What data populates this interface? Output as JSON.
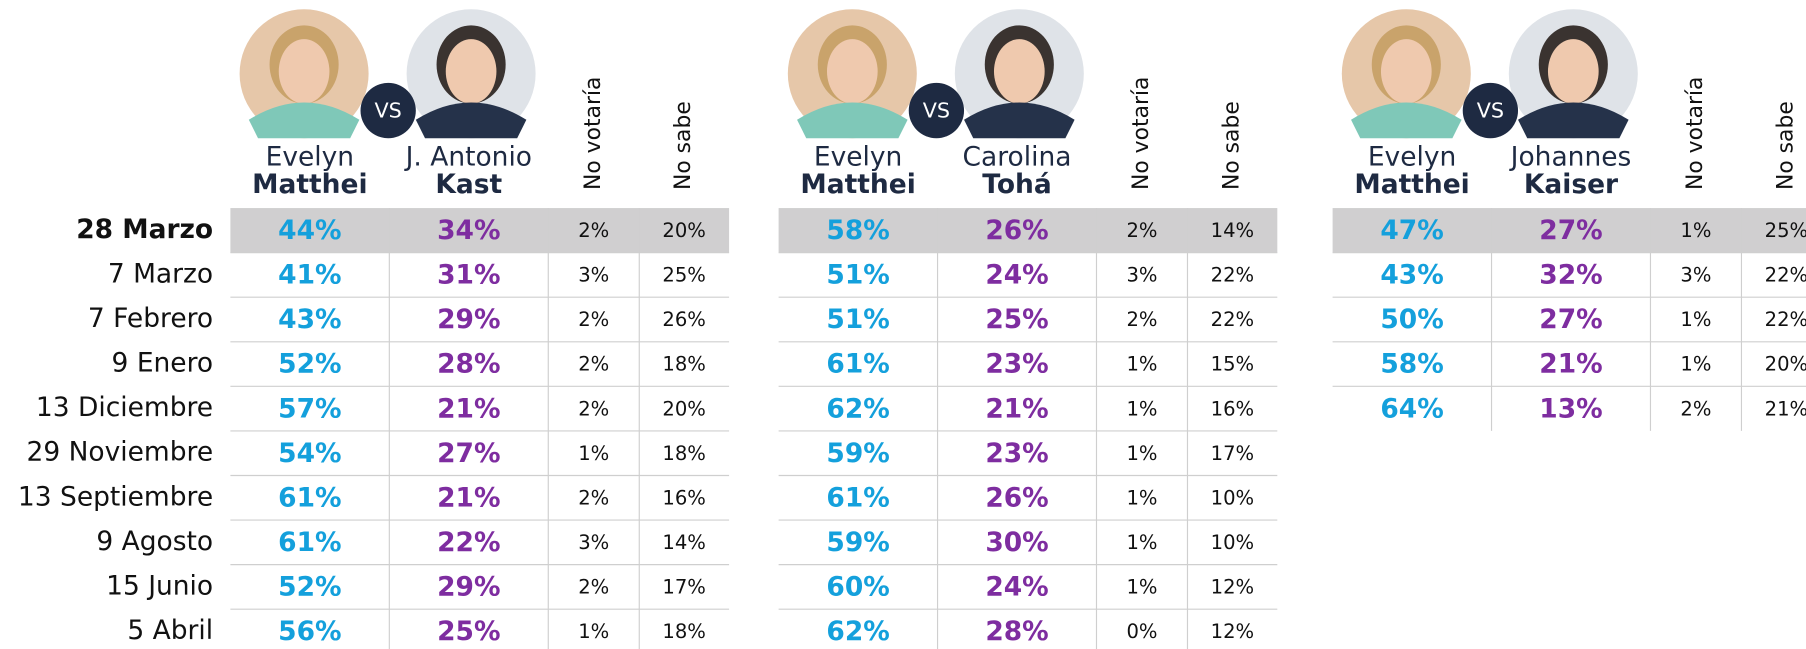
{
  "dates": [
    "28 Marzo",
    "7 Marzo",
    "7 Febrero",
    "9 Enero",
    "13 Diciembre",
    "29 Noviembre",
    "13 Septiembre",
    "9 Agosto",
    "15 Junio",
    "5 Abril"
  ],
  "matchups": [
    {
      "candidates": [
        {
          "first": "Evelyn",
          "last": "Matthei"
        },
        {
          "first": "J. Antonio",
          "last": "Kast"
        }
      ],
      "vs": "VS",
      "columns": [
        "No votaría",
        "No sabe"
      ],
      "rows": [
        [
          "44%",
          "34%",
          "2%",
          "20%"
        ],
        [
          "41%",
          "31%",
          "3%",
          "25%"
        ],
        [
          "43%",
          "29%",
          "2%",
          "26%"
        ],
        [
          "52%",
          "28%",
          "2%",
          "18%"
        ],
        [
          "57%",
          "21%",
          "2%",
          "20%"
        ],
        [
          "54%",
          "27%",
          "1%",
          "18%"
        ],
        [
          "61%",
          "21%",
          "2%",
          "16%"
        ],
        [
          "61%",
          "22%",
          "3%",
          "14%"
        ],
        [
          "52%",
          "29%",
          "2%",
          "17%"
        ],
        [
          "56%",
          "25%",
          "1%",
          "18%"
        ]
      ]
    },
    {
      "candidates": [
        {
          "first": "Evelyn",
          "last": "Matthei"
        },
        {
          "first": "Carolina",
          "last": "Tohá"
        }
      ],
      "vs": "VS",
      "columns": [
        "No votaría",
        "No sabe"
      ],
      "rows": [
        [
          "58%",
          "26%",
          "2%",
          "14%"
        ],
        [
          "51%",
          "24%",
          "3%",
          "22%"
        ],
        [
          "51%",
          "25%",
          "2%",
          "22%"
        ],
        [
          "61%",
          "23%",
          "1%",
          "15%"
        ],
        [
          "62%",
          "21%",
          "1%",
          "16%"
        ],
        [
          "59%",
          "23%",
          "1%",
          "17%"
        ],
        [
          "61%",
          "26%",
          "1%",
          "10%"
        ],
        [
          "59%",
          "30%",
          "1%",
          "10%"
        ],
        [
          "60%",
          "24%",
          "1%",
          "12%"
        ],
        [
          "62%",
          "28%",
          "0%",
          "12%"
        ]
      ]
    },
    {
      "candidates": [
        {
          "first": "Evelyn",
          "last": "Matthei"
        },
        {
          "first": "Johannes",
          "last": "Kaiser"
        }
      ],
      "vs": "VS",
      "columns": [
        "No votaría",
        "No sabe"
      ],
      "rows": [
        [
          "47%",
          "27%",
          "1%",
          "25%"
        ],
        [
          "43%",
          "32%",
          "3%",
          "22%"
        ],
        [
          "50%",
          "27%",
          "1%",
          "22%"
        ],
        [
          "58%",
          "21%",
          "1%",
          "20%"
        ],
        [
          "64%",
          "13%",
          "2%",
          "21%"
        ]
      ]
    }
  ]
}
